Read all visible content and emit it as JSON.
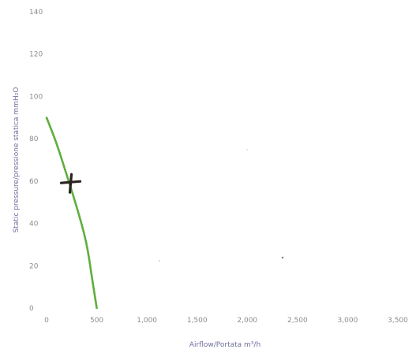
{
  "chart_data": {
    "type": "line",
    "xlabel": "Airflow/Portata m³/h",
    "ylabel": "Static pressure/pressione statica mmH₂O",
    "xlim": [
      0,
      3500
    ],
    "ylim": [
      0,
      140
    ],
    "x_ticks": [
      "0",
      "500",
      "1,000",
      "1,500",
      "2,000",
      "2,500",
      "3,000",
      "3,500"
    ],
    "y_ticks": [
      "0",
      "20",
      "40",
      "60",
      "80",
      "100",
      "120",
      "140"
    ],
    "grid": false,
    "legend": "none",
    "series": [
      {
        "color": "#5fae3e",
        "x": [
          0,
          100,
          200,
          300,
          400,
          450,
          500
        ],
        "y": [
          90,
          78,
          63,
          48,
          31,
          15,
          0
        ]
      }
    ],
    "annotations": [
      {
        "type": "operating-point-marker",
        "x": 240,
        "y": 59.5,
        "color": "#2b2320"
      }
    ]
  }
}
